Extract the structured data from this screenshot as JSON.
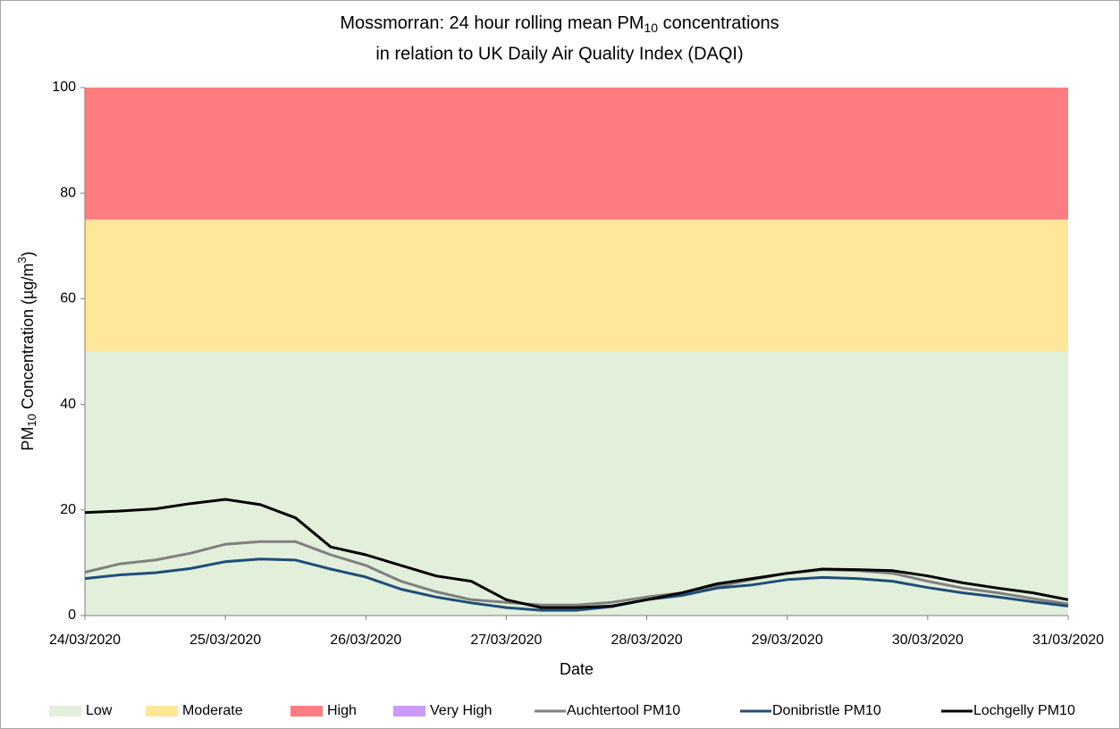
{
  "chart_data": {
    "type": "line",
    "title": {
      "line1": {
        "pre": "Mossmorran: 24 hour rolling mean PM",
        "sub": "10",
        "post": " concentrations"
      },
      "line2": "in relation to UK Daily Air Quality Index (DAQI)"
    },
    "y_label": {
      "pre": "PM",
      "sub": "10",
      "mid": " Concentration (µg/m",
      "sup": "3",
      "post": ")"
    },
    "x_label": "Date",
    "x": [
      0,
      0.25,
      0.5,
      0.75,
      1,
      1.25,
      1.5,
      1.75,
      2,
      2.25,
      2.5,
      2.75,
      3,
      3.25,
      3.5,
      3.75,
      4,
      4.25,
      4.5,
      4.75,
      5,
      5.25,
      5.5,
      5.75,
      6,
      6.25,
      6.5,
      6.75,
      7
    ],
    "xlim": [
      0,
      7
    ],
    "xticks": [
      {
        "value": 0,
        "label": "24/03/2020"
      },
      {
        "value": 1,
        "label": "25/03/2020"
      },
      {
        "value": 2,
        "label": "26/03/2020"
      },
      {
        "value": 3,
        "label": "27/03/2020"
      },
      {
        "value": 4,
        "label": "28/03/2020"
      },
      {
        "value": 5,
        "label": "29/03/2020"
      },
      {
        "value": 6,
        "label": "30/03/2020"
      },
      {
        "value": 7,
        "label": "31/03/2020"
      }
    ],
    "ylim": [
      0,
      100
    ],
    "yticks": [
      0,
      20,
      40,
      60,
      80,
      100
    ],
    "grid": false,
    "legend": "bottom",
    "bands": [
      {
        "name": "Low",
        "color": "#e2efda",
        "from": 0,
        "to": 50
      },
      {
        "name": "Moderate",
        "color": "#ffe699",
        "from": 50,
        "to": 75
      },
      {
        "name": "High",
        "color": "#ff7c80",
        "from": 75,
        "to": 100
      },
      {
        "name": "Very High",
        "color": "#cc99ff"
      }
    ],
    "series": [
      {
        "name": "Auchtertool PM10",
        "color": "#808080",
        "values": [
          8.2,
          9.8,
          10.5,
          11.8,
          13.5,
          14,
          14,
          11.5,
          9.5,
          6.5,
          4.5,
          3,
          2.5,
          2,
          2,
          2.5,
          3.5,
          4.3,
          5.5,
          6.8,
          8,
          8.7,
          8.5,
          8,
          6.5,
          5.2,
          4.3,
          3.2,
          2.2
        ]
      },
      {
        "name": "Donibristle PM10",
        "color": "#1f4e79",
        "values": [
          7,
          7.7,
          8.1,
          8.9,
          10.2,
          10.7,
          10.5,
          8.8,
          7.3,
          5,
          3.5,
          2.4,
          1.5,
          1,
          1,
          1.7,
          3,
          3.8,
          5.2,
          5.8,
          6.8,
          7.2,
          7,
          6.5,
          5.3,
          4.3,
          3.5,
          2.6,
          1.8
        ]
      },
      {
        "name": "Lochgelly PM10",
        "color": "#000000",
        "values": [
          19.5,
          19.8,
          20.2,
          21.2,
          22,
          21,
          18.5,
          13,
          11.5,
          9.5,
          7.5,
          6.5,
          3,
          1.5,
          1.5,
          1.8,
          3,
          4.3,
          6,
          7,
          8,
          8.8,
          8.7,
          8.5,
          7.5,
          6.2,
          5.2,
          4.3,
          3
        ]
      }
    ]
  }
}
